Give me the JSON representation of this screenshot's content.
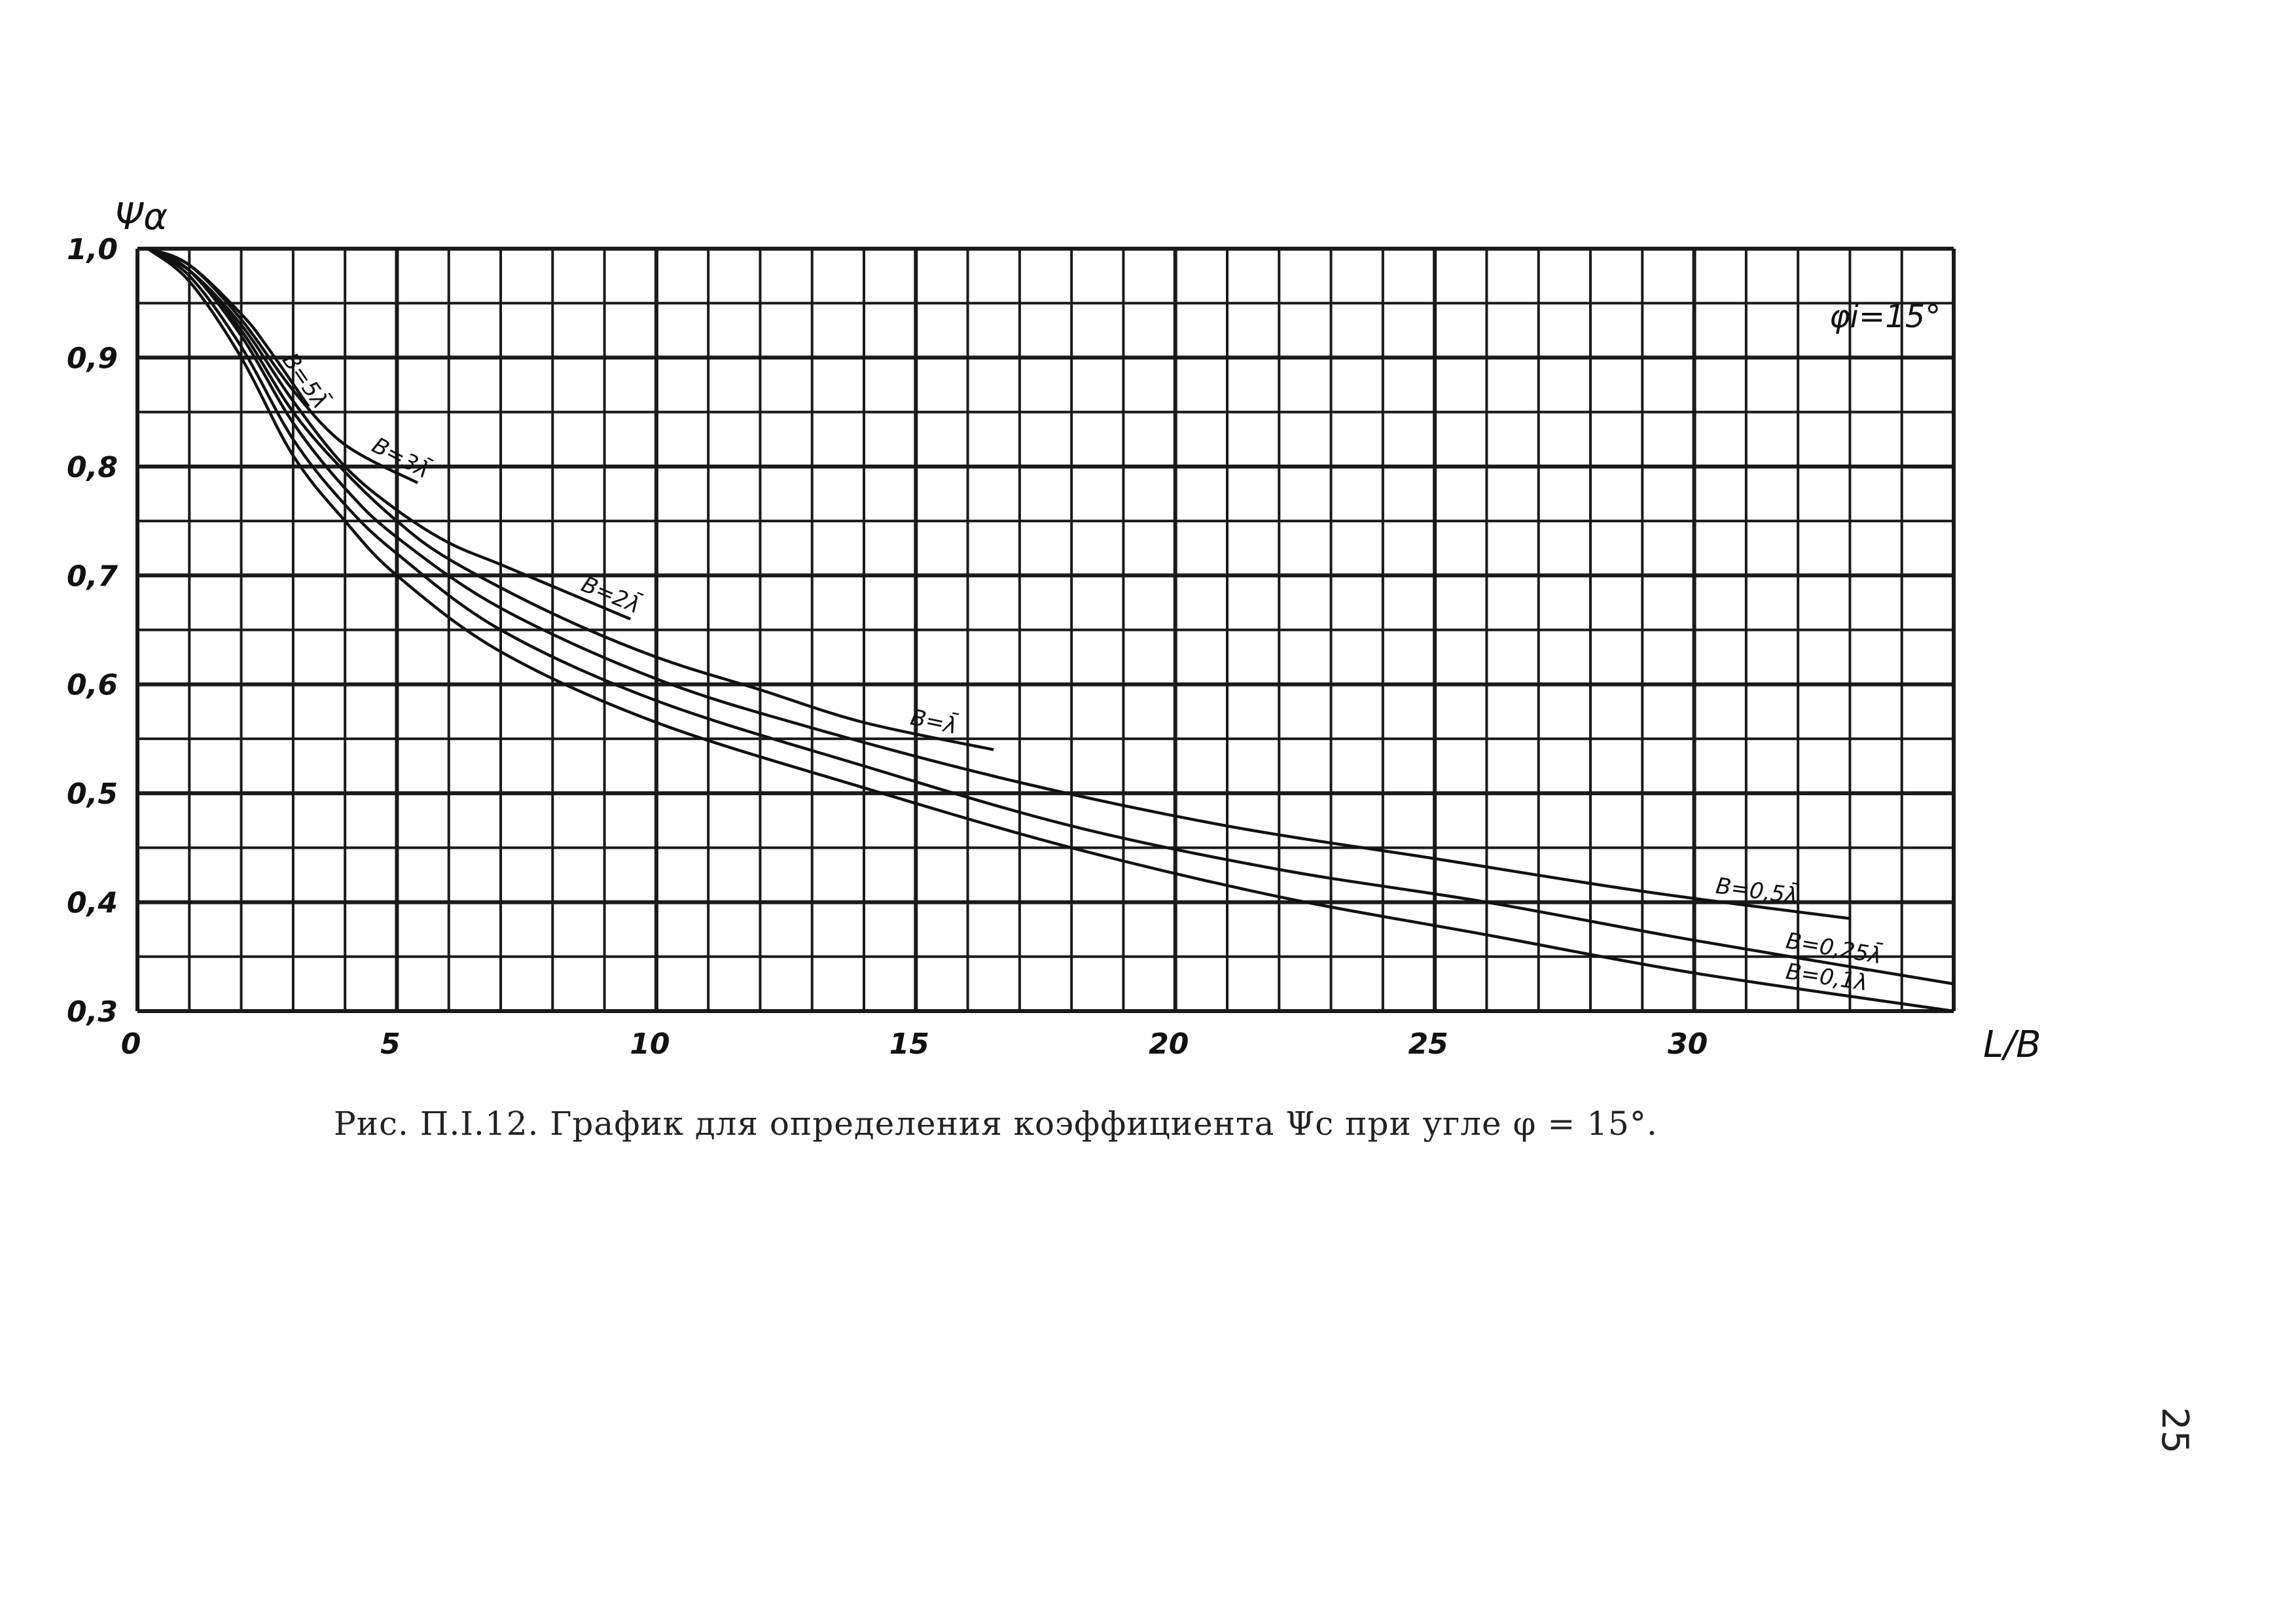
{
  "chart_data": {
    "type": "line",
    "ylabel": "Ψα",
    "xlabel": "L/B",
    "annotation": "φi=15°",
    "xlim": [
      0,
      35
    ],
    "ylim": [
      0.3,
      1.0
    ],
    "x_ticks": [
      "0",
      "5",
      "10",
      "15",
      "20",
      "25",
      "30"
    ],
    "y_ticks": [
      "1,0",
      "0,9",
      "0,8",
      "0,7",
      "0,6",
      "0,5",
      "0,4",
      "0,3"
    ],
    "grid": true,
    "series": [
      {
        "name": "B=5λ̄",
        "x": [
          0.2,
          1,
          2,
          2.5,
          3.3
        ],
        "y": [
          1.0,
          0.985,
          0.94,
          0.91,
          0.855
        ]
      },
      {
        "name": "B=3λ̄",
        "x": [
          0.2,
          1,
          2,
          3,
          4,
          5.4
        ],
        "y": [
          1.0,
          0.985,
          0.935,
          0.87,
          0.82,
          0.785
        ]
      },
      {
        "name": "B=2λ̄",
        "x": [
          0.2,
          1,
          2,
          3,
          4,
          5,
          6,
          7,
          8,
          9.5
        ],
        "y": [
          1.0,
          0.98,
          0.93,
          0.86,
          0.8,
          0.76,
          0.73,
          0.71,
          0.69,
          0.66
        ]
      },
      {
        "name": "B=λ̄",
        "x": [
          0.2,
          1,
          2,
          3,
          4,
          5,
          6,
          8,
          10,
          12,
          14,
          16.5
        ],
        "y": [
          1.0,
          0.98,
          0.925,
          0.85,
          0.795,
          0.75,
          0.715,
          0.665,
          0.625,
          0.595,
          0.565,
          0.54
        ]
      },
      {
        "name": "B=0,5λ̄",
        "x": [
          0.2,
          1,
          2,
          3,
          4,
          5,
          7,
          10,
          13,
          17,
          21,
          25,
          29,
          33
        ],
        "y": [
          1.0,
          0.98,
          0.92,
          0.84,
          0.78,
          0.735,
          0.67,
          0.605,
          0.56,
          0.51,
          0.47,
          0.44,
          0.41,
          0.385
        ]
      },
      {
        "name": "B=0,25λ̄",
        "x": [
          0.2,
          1,
          2,
          3,
          4,
          5,
          7,
          10,
          14,
          18,
          22,
          26,
          30,
          35
        ],
        "y": [
          1.0,
          0.975,
          0.91,
          0.825,
          0.765,
          0.72,
          0.65,
          0.585,
          0.525,
          0.47,
          0.43,
          0.4,
          0.365,
          0.325
        ]
      },
      {
        "name": "B=0,1λ̄",
        "x": [
          0.2,
          1,
          2,
          3,
          4,
          5,
          7,
          10,
          14,
          18,
          22,
          26,
          30,
          35
        ],
        "y": [
          1.0,
          0.97,
          0.9,
          0.81,
          0.75,
          0.7,
          0.63,
          0.565,
          0.505,
          0.45,
          0.405,
          0.37,
          0.335,
          0.3
        ]
      }
    ]
  },
  "caption": "Рис. П.I.12. График для определения коэффициента Ψс при угле φ = 15°.",
  "page_number": "25"
}
